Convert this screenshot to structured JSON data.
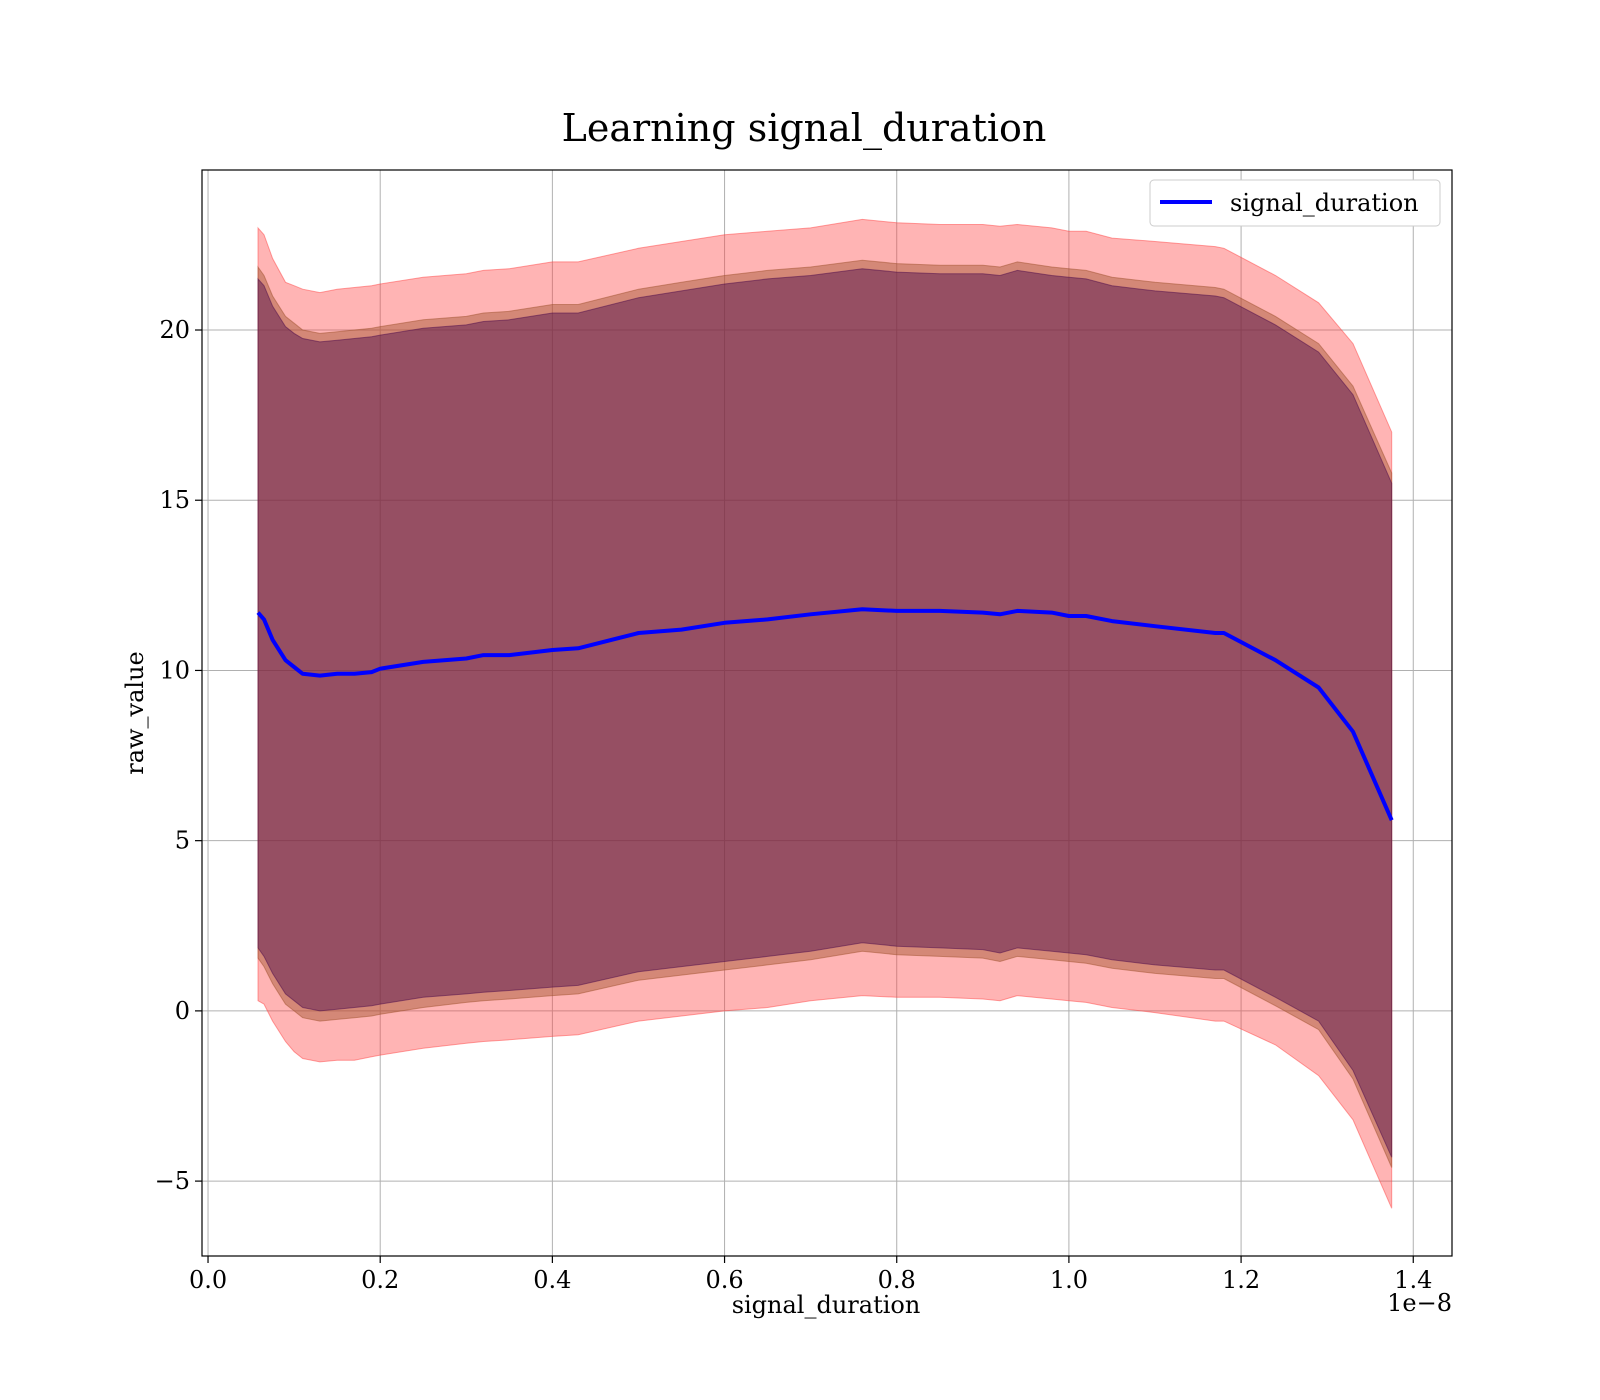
{
  "chart_data": {
    "type": "line",
    "title": "Learning signal_duration",
    "xlabel": "signal_duration",
    "ylabel": "raw_value",
    "x_offset_label": "1e−8",
    "xlim": [
      -0.007,
      1.445
    ],
    "ylim": [
      -7.2,
      24.7
    ],
    "x_ticks": [
      0.0,
      0.2,
      0.4,
      0.6,
      0.8,
      1.0,
      1.2,
      1.4
    ],
    "x_tick_labels": [
      "0.0",
      "0.2",
      "0.4",
      "0.6",
      "0.8",
      "1.0",
      "1.2",
      "1.4"
    ],
    "y_ticks": [
      -5,
      0,
      5,
      10,
      15,
      20
    ],
    "y_tick_labels": [
      "−5",
      "0",
      "5",
      "10",
      "15",
      "20"
    ],
    "grid": true,
    "legend_position": "top-right",
    "x": [
      0.058,
      0.065,
      0.075,
      0.09,
      0.1,
      0.11,
      0.13,
      0.15,
      0.17,
      0.19,
      0.2,
      0.25,
      0.3,
      0.32,
      0.35,
      0.4,
      0.43,
      0.5,
      0.55,
      0.6,
      0.65,
      0.7,
      0.76,
      0.8,
      0.85,
      0.9,
      0.92,
      0.94,
      0.98,
      1.0,
      1.02,
      1.05,
      1.1,
      1.17,
      1.18,
      1.24,
      1.29,
      1.33,
      1.375
    ],
    "series": [
      {
        "name": "signal_duration",
        "color": "#0000ff",
        "mean": [
          11.7,
          11.5,
          10.9,
          10.3,
          10.1,
          9.9,
          9.85,
          9.9,
          9.9,
          9.95,
          10.05,
          10.25,
          10.35,
          10.45,
          10.45,
          10.6,
          10.65,
          11.1,
          11.2,
          11.4,
          11.5,
          11.65,
          11.8,
          11.75,
          11.75,
          11.7,
          11.65,
          11.75,
          11.7,
          11.6,
          11.6,
          11.45,
          11.3,
          11.1,
          11.1,
          10.3,
          9.5,
          8.2,
          5.6
        ]
      }
    ],
    "bands": [
      {
        "color": "#ff4444",
        "opacity": 0.4,
        "upper": [
          23.0,
          22.8,
          22.1,
          21.4,
          21.3,
          21.2,
          21.1,
          21.2,
          21.25,
          21.3,
          21.35,
          21.55,
          21.65,
          21.75,
          21.8,
          22.0,
          22.0,
          22.4,
          22.6,
          22.8,
          22.9,
          23.0,
          23.25,
          23.15,
          23.1,
          23.1,
          23.05,
          23.1,
          23.0,
          22.9,
          22.9,
          22.7,
          22.6,
          22.45,
          22.4,
          21.6,
          20.8,
          19.6,
          17.0
        ],
        "lower": [
          0.3,
          0.2,
          -0.3,
          -0.9,
          -1.2,
          -1.4,
          -1.5,
          -1.45,
          -1.45,
          -1.35,
          -1.3,
          -1.1,
          -0.95,
          -0.9,
          -0.85,
          -0.75,
          -0.7,
          -0.3,
          -0.15,
          0.0,
          0.1,
          0.3,
          0.45,
          0.4,
          0.4,
          0.35,
          0.3,
          0.45,
          0.35,
          0.3,
          0.25,
          0.1,
          -0.05,
          -0.3,
          -0.3,
          -1.0,
          -1.9,
          -3.2,
          -5.8
        ]
      },
      {
        "color": "#a0522d",
        "opacity": 0.45,
        "upper": [
          21.85,
          21.6,
          21.0,
          20.4,
          20.2,
          20.0,
          19.9,
          19.95,
          20.0,
          20.05,
          20.1,
          20.3,
          20.4,
          20.5,
          20.55,
          20.75,
          20.75,
          21.2,
          21.4,
          21.6,
          21.75,
          21.85,
          22.05,
          21.95,
          21.9,
          21.9,
          21.85,
          22.0,
          21.85,
          21.8,
          21.75,
          21.55,
          21.4,
          21.25,
          21.2,
          20.4,
          19.6,
          18.35,
          15.8
        ],
        "lower": [
          1.55,
          1.3,
          0.8,
          0.2,
          0.0,
          -0.2,
          -0.3,
          -0.25,
          -0.2,
          -0.15,
          -0.1,
          0.1,
          0.25,
          0.3,
          0.35,
          0.45,
          0.5,
          0.9,
          1.05,
          1.2,
          1.35,
          1.5,
          1.75,
          1.65,
          1.6,
          1.55,
          1.45,
          1.6,
          1.5,
          1.45,
          1.4,
          1.25,
          1.1,
          0.95,
          0.95,
          0.15,
          -0.55,
          -2.0,
          -4.6
        ]
      },
      {
        "color": "#4b0a4b",
        "opacity": 0.45,
        "upper": [
          21.5,
          21.3,
          20.7,
          20.1,
          19.9,
          19.75,
          19.65,
          19.7,
          19.75,
          19.8,
          19.85,
          20.05,
          20.15,
          20.25,
          20.3,
          20.5,
          20.5,
          20.95,
          21.15,
          21.35,
          21.5,
          21.6,
          21.8,
          21.7,
          21.65,
          21.65,
          21.6,
          21.75,
          21.6,
          21.55,
          21.5,
          21.3,
          21.15,
          21.0,
          20.95,
          20.15,
          19.35,
          18.1,
          15.5
        ],
        "lower": [
          1.85,
          1.6,
          1.1,
          0.5,
          0.3,
          0.1,
          0.0,
          0.05,
          0.1,
          0.15,
          0.2,
          0.4,
          0.5,
          0.55,
          0.6,
          0.7,
          0.75,
          1.15,
          1.3,
          1.45,
          1.6,
          1.75,
          2.0,
          1.9,
          1.85,
          1.8,
          1.7,
          1.85,
          1.75,
          1.7,
          1.65,
          1.5,
          1.35,
          1.2,
          1.2,
          0.4,
          -0.3,
          -1.75,
          -4.3
        ]
      }
    ]
  }
}
